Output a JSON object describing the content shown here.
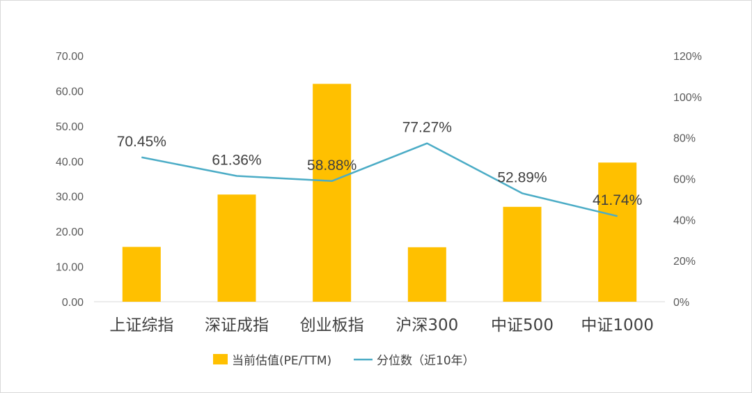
{
  "chart_data": {
    "type": "bar",
    "categories": [
      "上证综指",
      "深证成指",
      "创业板指",
      "沪深300",
      "中证500",
      "中证1000"
    ],
    "series": [
      {
        "name": "当前估值(PE/TTM)",
        "type": "bar",
        "axis": "left",
        "color": "#FFC000",
        "values": [
          15.6,
          30.5,
          62.0,
          15.5,
          27.0,
          39.6
        ]
      },
      {
        "name": "分位数（近10年）",
        "type": "line",
        "axis": "right",
        "color": "#4BACC6",
        "values": [
          70.45,
          61.36,
          58.88,
          77.27,
          52.89,
          41.74
        ],
        "labels": [
          "70.45%",
          "61.36%",
          "58.88%",
          "77.27%",
          "52.89%",
          "41.74%"
        ]
      }
    ],
    "left_axis": {
      "ylim": [
        0,
        70
      ],
      "ticks": [
        "0.00",
        "10.00",
        "20.00",
        "30.00",
        "40.00",
        "50.00",
        "60.00",
        "70.00"
      ]
    },
    "right_axis": {
      "ylim": [
        0,
        120
      ],
      "ticks": [
        "0%",
        "20%",
        "40%",
        "60%",
        "80%",
        "100%",
        "120%"
      ]
    },
    "grid": false,
    "legend": "bottom"
  }
}
